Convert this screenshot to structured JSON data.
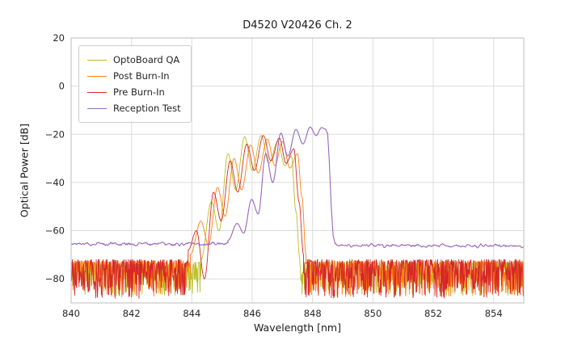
{
  "chart_data": {
    "type": "line",
    "title": "D4520 V20426 Ch. 2",
    "xlabel": "Wavelength [nm]",
    "ylabel": "Optical Power [dB]",
    "xlim": [
      840,
      855
    ],
    "ylim": [
      -90,
      20
    ],
    "xticks": [
      840,
      842,
      844,
      846,
      848,
      850,
      852,
      854
    ],
    "yticks": [
      20,
      0,
      -20,
      -40,
      -60,
      -80
    ],
    "grid": true,
    "legend_position": "upper left",
    "grid_color": "#dcdcdc",
    "spine_color": "#bdbdbd",
    "tick_color": "#262626",
    "series": [
      {
        "name": "OptoBoard QA",
        "color": "#bcbd22",
        "seed": 11,
        "width": 0.9,
        "segments": [
          {
            "t": "noise",
            "x0": 840,
            "x1": 844.3,
            "base": -73,
            "depth": 14,
            "power": 2,
            "step": 0.014
          },
          {
            "t": "extrema",
            "pts": [
              [
                844.3,
                -72
              ],
              [
                844.65,
                -48
              ],
              [
                844.9,
                -60
              ],
              [
                845.2,
                -28
              ],
              [
                845.45,
                -43
              ],
              [
                845.75,
                -21
              ],
              [
                846.0,
                -35
              ],
              [
                846.3,
                -20.5
              ],
              [
                846.55,
                -32
              ],
              [
                846.85,
                -23
              ],
              [
                847.08,
                -33
              ],
              [
                847.3,
                -29
              ],
              [
                847.45,
                -52
              ],
              [
                847.58,
                -72
              ]
            ]
          },
          {
            "t": "noise",
            "x0": 847.58,
            "x1": 855,
            "base": -73,
            "depth": 14,
            "power": 2,
            "step": 0.014
          }
        ]
      },
      {
        "name": "Post Burn-In",
        "color": "#ff7f0e",
        "seed": 22,
        "width": 0.9,
        "segments": [
          {
            "t": "noise",
            "x0": 840,
            "x1": 843.95,
            "base": -72.5,
            "depth": 15,
            "power": 2,
            "step": 0.014
          },
          {
            "t": "extrema",
            "pts": [
              [
                843.95,
                -70
              ],
              [
                844.3,
                -56
              ],
              [
                844.55,
                -66
              ],
              [
                844.85,
                -42
              ],
              [
                845.1,
                -54
              ],
              [
                845.4,
                -30
              ],
              [
                845.65,
                -43
              ],
              [
                845.95,
                -24.5
              ],
              [
                846.2,
                -36
              ],
              [
                846.5,
                -22
              ],
              [
                846.75,
                -33
              ],
              [
                847.0,
                -23
              ],
              [
                847.25,
                -34
              ],
              [
                847.5,
                -28
              ],
              [
                847.65,
                -46
              ],
              [
                847.78,
                -70
              ]
            ]
          },
          {
            "t": "noise",
            "x0": 847.78,
            "x1": 855,
            "base": -72.5,
            "depth": 15,
            "power": 2,
            "step": 0.014
          }
        ]
      },
      {
        "name": "Pre Burn-In",
        "color": "#d62728",
        "seed": 33,
        "width": 0.9,
        "segments": [
          {
            "t": "noise",
            "x0": 840,
            "x1": 843.88,
            "base": -72,
            "depth": 16,
            "power": 2,
            "step": 0.013
          },
          {
            "t": "extrema",
            "pts": [
              [
                843.88,
                -68
              ],
              [
                844.15,
                -60
              ],
              [
                844.42,
                -80
              ],
              [
                844.72,
                -44
              ],
              [
                844.97,
                -56
              ],
              [
                845.27,
                -31
              ],
              [
                845.52,
                -44
              ],
              [
                845.82,
                -24
              ],
              [
                846.07,
                -35
              ],
              [
                846.37,
                -20.5
              ],
              [
                846.62,
                -31
              ],
              [
                846.9,
                -21.5
              ],
              [
                847.12,
                -32
              ],
              [
                847.38,
                -26
              ],
              [
                847.55,
                -48
              ],
              [
                847.7,
                -70
              ]
            ]
          },
          {
            "t": "noise",
            "x0": 847.7,
            "x1": 855,
            "base": -72,
            "depth": 16,
            "power": 2,
            "step": 0.013
          }
        ]
      },
      {
        "name": "Reception Test",
        "color": "#9467bd",
        "seed": 44,
        "width": 1.1,
        "segments": [
          {
            "t": "smoothnoise",
            "x0": 840,
            "x1": 845.2,
            "base": -65.5,
            "amp": 1.6,
            "window": 5,
            "step": 0.02
          },
          {
            "t": "extrema",
            "pts": [
              [
                845.2,
                -64
              ],
              [
                845.5,
                -57
              ],
              [
                845.72,
                -61
              ],
              [
                845.98,
                -47
              ],
              [
                846.2,
                -53
              ],
              [
                846.45,
                -28
              ],
              [
                846.68,
                -40
              ],
              [
                846.95,
                -19.5
              ],
              [
                847.18,
                -29
              ],
              [
                847.45,
                -18
              ],
              [
                847.68,
                -24
              ],
              [
                847.92,
                -17
              ],
              [
                848.12,
                -20.5
              ],
              [
                848.3,
                -17.2
              ],
              [
                848.42,
                -17.8
              ],
              [
                848.5,
                -19.5
              ]
            ]
          },
          {
            "t": "line",
            "pts": [
              [
                848.55,
                -30
              ],
              [
                848.62,
                -50
              ],
              [
                848.68,
                -62
              ],
              [
                848.75,
                -65.5
              ]
            ]
          },
          {
            "t": "smoothnoise",
            "x0": 848.75,
            "x1": 855,
            "base": -66.2,
            "amp": 1.4,
            "window": 5,
            "step": 0.02
          }
        ]
      }
    ]
  }
}
